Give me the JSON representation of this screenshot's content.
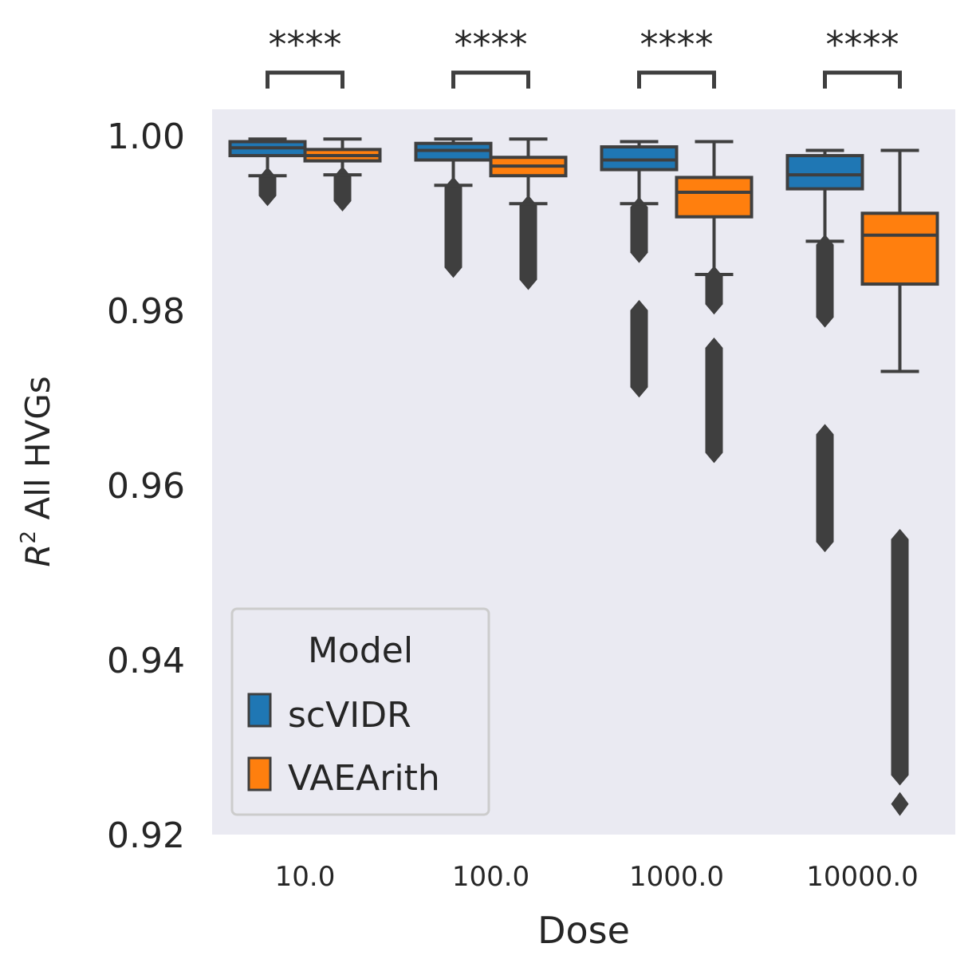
{
  "chart_data": {
    "type": "box",
    "xlabel": "Dose",
    "ylabel_base": "R",
    "ylabel_sup": "2",
    "ylabel_rest": " All HVGs",
    "ylim": [
      0.92,
      1.003
    ],
    "yticks": [
      "0.92",
      "0.94",
      "0.96",
      "0.98",
      "1.00"
    ],
    "ytick_values": [
      0.92,
      0.94,
      0.96,
      0.98,
      1.0
    ],
    "categories": [
      "10.0",
      "100.0",
      "1000.0",
      "10000.0"
    ],
    "significance": [
      "****",
      "****",
      "****",
      "****"
    ],
    "legend": {
      "title": "Model",
      "placement": "lower-left",
      "items": [
        {
          "name": "scVIDR",
          "color": "#1f77b4"
        },
        {
          "name": "VAEArith",
          "color": "#ff7f0e"
        }
      ]
    },
    "grid": false,
    "background_color": "#eaeaf2",
    "series": [
      {
        "name": "scVIDR",
        "color": "#1f77b4",
        "boxes": [
          {
            "q1": 0.9977,
            "median": 0.9986,
            "q3": 0.9993,
            "whislo": 0.9954,
            "whishi": 0.9996,
            "fliers_low": 0.9931,
            "fliers_high": 0.9952
          },
          {
            "q1": 0.9972,
            "median": 0.9983,
            "q3": 0.9991,
            "whislo": 0.9943,
            "whishi": 0.9996,
            "fliers_low": 0.9849,
            "fliers_high": 0.9941
          },
          {
            "q1": 0.9961,
            "median": 0.9972,
            "q3": 0.9987,
            "whislo": 0.9922,
            "whishi": 0.9993,
            "fliers_low": 0.9712,
            "fliers_high": 0.9918,
            "fliers_gap": [
              0.9866,
              0.98
            ]
          },
          {
            "q1": 0.9939,
            "median": 0.9955,
            "q3": 0.9977,
            "whislo": 0.9879,
            "whishi": 0.9983,
            "fliers_low": 0.9535,
            "fliers_high": 0.9875,
            "fliers_gap": [
              0.9792,
              0.9658
            ]
          }
        ]
      },
      {
        "name": "VAEArith",
        "color": "#ff7f0e",
        "boxes": [
          {
            "q1": 0.9971,
            "median": 0.9977,
            "q3": 0.9984,
            "whislo": 0.9955,
            "whishi": 0.9996,
            "fliers_low": 0.9925,
            "fliers_high": 0.9953
          },
          {
            "q1": 0.9954,
            "median": 0.9965,
            "q3": 0.9975,
            "whislo": 0.9922,
            "whishi": 0.9996,
            "fliers_low": 0.9835,
            "fliers_high": 0.992
          },
          {
            "q1": 0.9907,
            "median": 0.9935,
            "q3": 0.9952,
            "whislo": 0.9841,
            "whishi": 0.9993,
            "fliers_low": 0.9637,
            "fliers_high": 0.9839,
            "fliers_gap": [
              0.9807,
              0.9757
            ]
          },
          {
            "q1": 0.983,
            "median": 0.9886,
            "q3": 0.9911,
            "whislo": 0.973,
            "whishi": 0.9983,
            "fliers_low": 0.9268,
            "fliers_high": 0.9538,
            "fliers_extra": [
              0.9235
            ]
          }
        ]
      }
    ]
  }
}
